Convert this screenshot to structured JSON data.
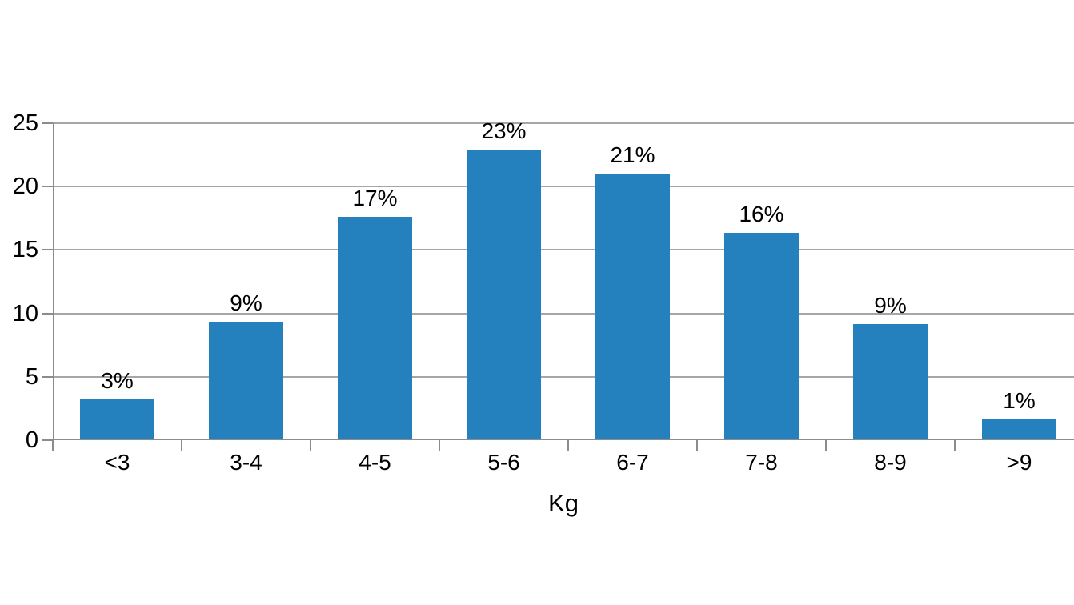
{
  "chart_data": {
    "type": "bar",
    "title": "",
    "xlabel": "Kg",
    "ylabel": "",
    "categories": [
      "<3",
      "3-4",
      "4-5",
      "5-6",
      "6-7",
      "7-8",
      "8-9",
      ">9"
    ],
    "values": [
      3.1,
      9.2,
      17.5,
      22.8,
      20.9,
      16.2,
      9.0,
      1.5
    ],
    "data_labels": [
      "3%",
      "9%",
      "17%",
      "23%",
      "21%",
      "16%",
      "9%",
      "1%"
    ],
    "ylim": [
      0,
      25
    ],
    "y_ticks": [
      0,
      5,
      10,
      15,
      20,
      25
    ],
    "grid": true,
    "legend": false,
    "background": "#ffffff",
    "colors": {
      "bar": "#2580BE",
      "gridline": "#A6A6A6",
      "axis": "#8C8C8C",
      "text": "#000000"
    }
  }
}
